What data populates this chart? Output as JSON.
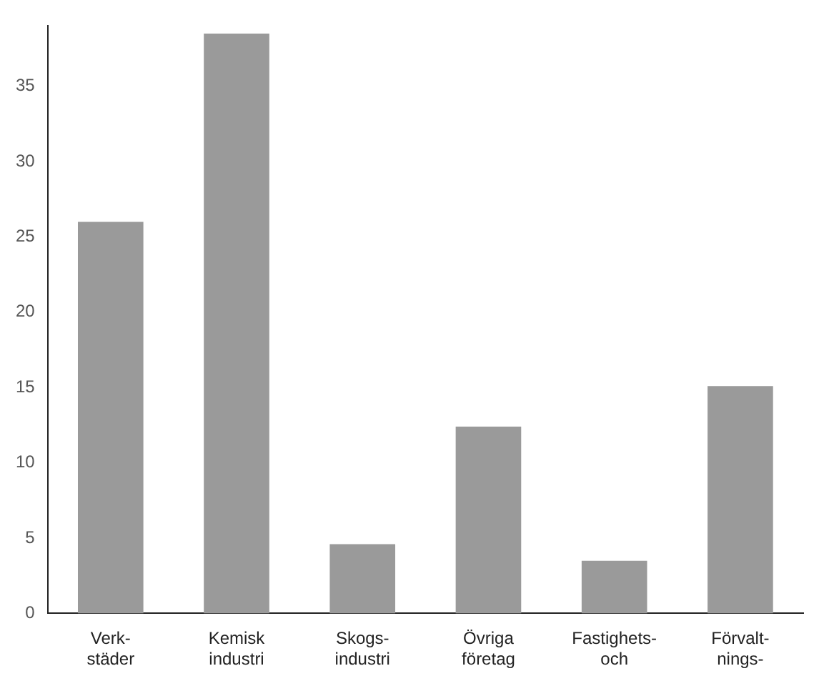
{
  "chart_data": {
    "type": "bar",
    "categories": [
      "Verk-\nstäder",
      "Kemisk\nindustri",
      "Skogs-\nindustri",
      "Övriga\nföretag",
      "Fastighets-\noch",
      "Förvalt-\nnings-"
    ],
    "values": [
      26,
      38.5,
      4.6,
      12.4,
      3.5,
      15.1
    ],
    "color": "#9a9a9a",
    "ylim": [
      0,
      39
    ],
    "yticks": [
      0,
      5,
      10,
      15,
      20,
      25,
      30,
      35
    ],
    "grid": false
  }
}
